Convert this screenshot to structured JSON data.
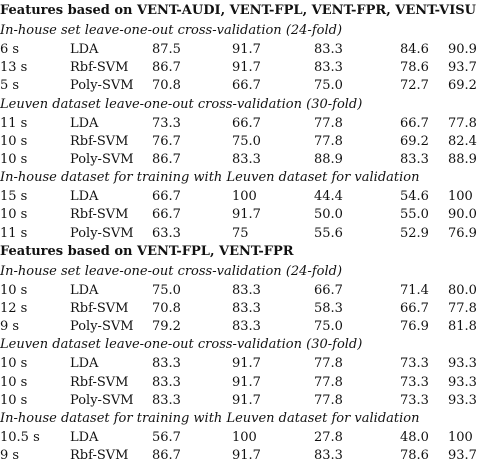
{
  "sections": [
    {
      "title": "Features based on VENT-AUDI, VENT-FPL, VENT-FPR, VENT-VISU",
      "groups": [
        {
          "title": "In-house set leave-one-out cross-validation (24-fold)",
          "rows": [
            [
              "6 s",
              "LDA",
              "87.5",
              "91.7",
              "83.3",
              "84.6",
              "90.9"
            ],
            [
              "13 s",
              "Rbf-SVM",
              "86.7",
              "91.7",
              "83.3",
              "78.6",
              "93.7"
            ],
            [
              "5 s",
              "Poly-SVM",
              "70.8",
              "66.7",
              "75.0",
              "72.7",
              "69.2"
            ]
          ]
        },
        {
          "title": "Leuven dataset leave-one-out cross-validation (30-fold)",
          "rows": [
            [
              "11 s",
              "LDA",
              "73.3",
              "66.7",
              "77.8",
              "66.7",
              "77.8"
            ],
            [
              "10 s",
              "Rbf-SVM",
              "76.7",
              "75.0",
              "77.8",
              "69.2",
              "82.4"
            ],
            [
              "10 s",
              "Poly-SVM",
              "86.7",
              "83.3",
              "88.9",
              "83.3",
              "88.9"
            ]
          ]
        },
        {
          "title": "In-house dataset for training with Leuven dataset for validation",
          "rows": [
            [
              "15 s",
              "LDA",
              "66.7",
              "100",
              "44.4",
              "54.6",
              "100"
            ],
            [
              "10 s",
              "Rbf-SVM",
              "66.7",
              "91.7",
              "50.0",
              "55.0",
              "90.0"
            ],
            [
              "11 s",
              "Poly-SVM",
              "63.3",
              "75",
              "55.6",
              "52.9",
              "76.9"
            ]
          ]
        }
      ]
    },
    {
      "title": "Features based on VENT-FPL, VENT-FPR",
      "groups": [
        {
          "title": "In-house set leave-one-out cross-validation (24-fold)",
          "rows": [
            [
              "10 s",
              "LDA",
              "75.0",
              "83.3",
              "66.7",
              "71.4",
              "80.0"
            ],
            [
              "12 s",
              "Rbf-SVM",
              "70.8",
              "83.3",
              "58.3",
              "66.7",
              "77.8"
            ],
            [
              "9 s",
              "Poly-SVM",
              "79.2",
              "83.3",
              "75.0",
              "76.9",
              "81.8"
            ]
          ]
        },
        {
          "title": "Leuven dataset leave-one-out cross-validation (30-fold)",
          "rows": [
            [
              "10 s",
              "LDA",
              "83.3",
              "91.7",
              "77.8",
              "73.3",
              "93.3"
            ],
            [
              "10 s",
              "Rbf-SVM",
              "83.3",
              "91.7",
              "77.8",
              "73.3",
              "93.3"
            ],
            [
              "10 s",
              "Poly-SVM",
              "83.3",
              "91.7",
              "77.8",
              "73.3",
              "93.3"
            ]
          ]
        },
        {
          "title": "In-house dataset for training with Leuven dataset for validation",
          "rows": [
            [
              "10.5 s",
              "LDA",
              "56.7",
              "100",
              "27.8",
              "48.0",
              "100"
            ],
            [
              "9 s",
              "Rbf-SVM",
              "86.7",
              "91.7",
              "83.3",
              "78.6",
              "93.7"
            ]
          ]
        }
      ]
    }
  ]
}
